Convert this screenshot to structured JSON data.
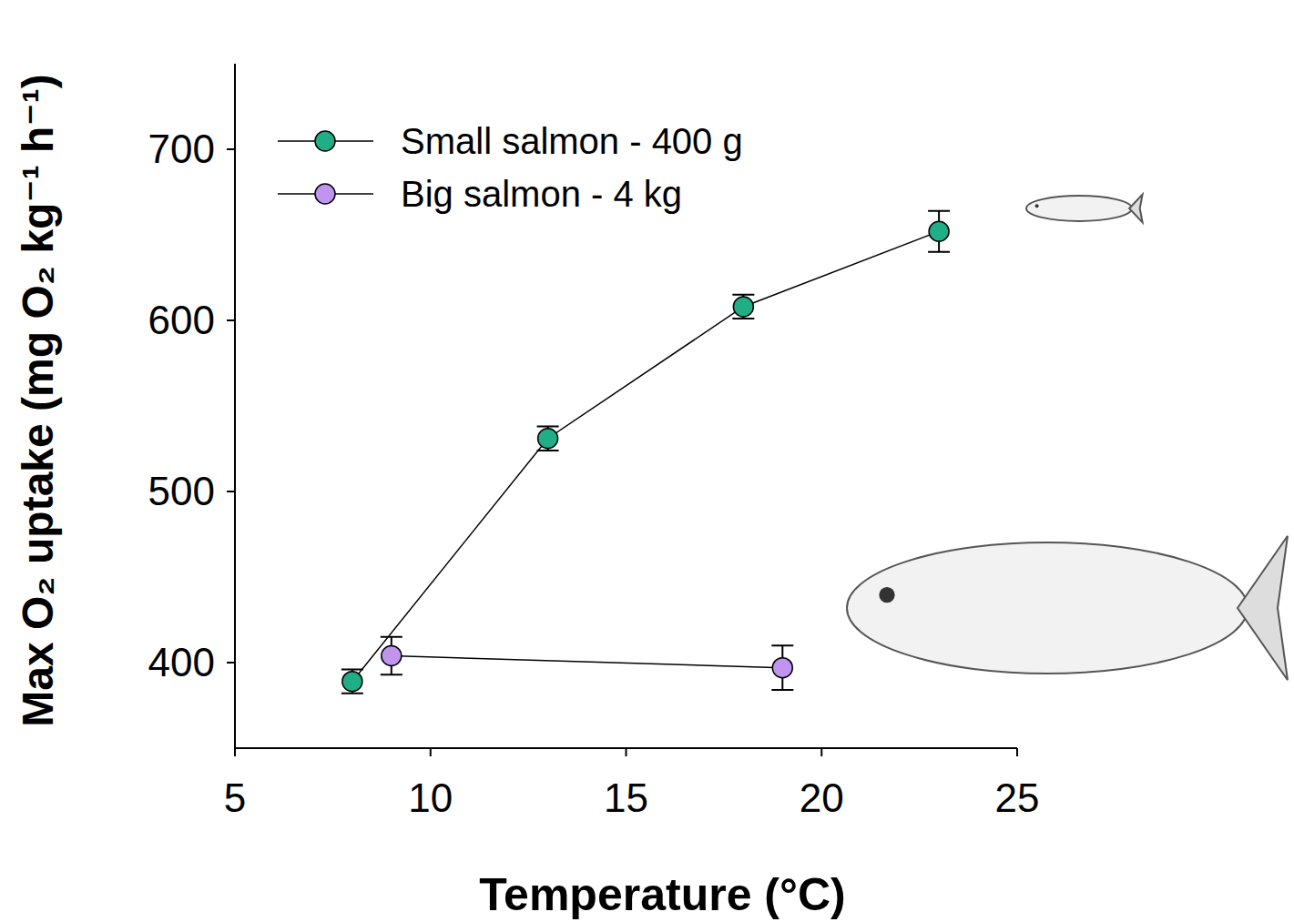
{
  "chart_data": {
    "type": "line",
    "x_label": "Temperature (°C)",
    "y_label": "Max O₂ uptake (mg O₂ kg⁻¹ h⁻¹)",
    "xlim": [
      5,
      25
    ],
    "xticks": [
      5,
      10,
      15,
      20,
      25
    ],
    "ylim": [
      350,
      750
    ],
    "yticks": [
      400,
      500,
      600,
      700
    ],
    "legend": "upper left",
    "grid": false,
    "series": [
      {
        "name": "Small salmon - 400 g",
        "color": "#1fae86",
        "marker": "circle",
        "line_style": "solid",
        "x": [
          8,
          13,
          18,
          23
        ],
        "values": [
          389,
          531,
          608,
          652
        ],
        "errors": [
          7,
          7,
          7,
          12
        ]
      },
      {
        "name": "Big salmon - 4 kg",
        "color": "#c195ef",
        "marker": "circle",
        "line_style": "solid",
        "x": [
          9,
          19
        ],
        "values": [
          404,
          397
        ],
        "errors": [
          11,
          13
        ]
      }
    ]
  }
}
